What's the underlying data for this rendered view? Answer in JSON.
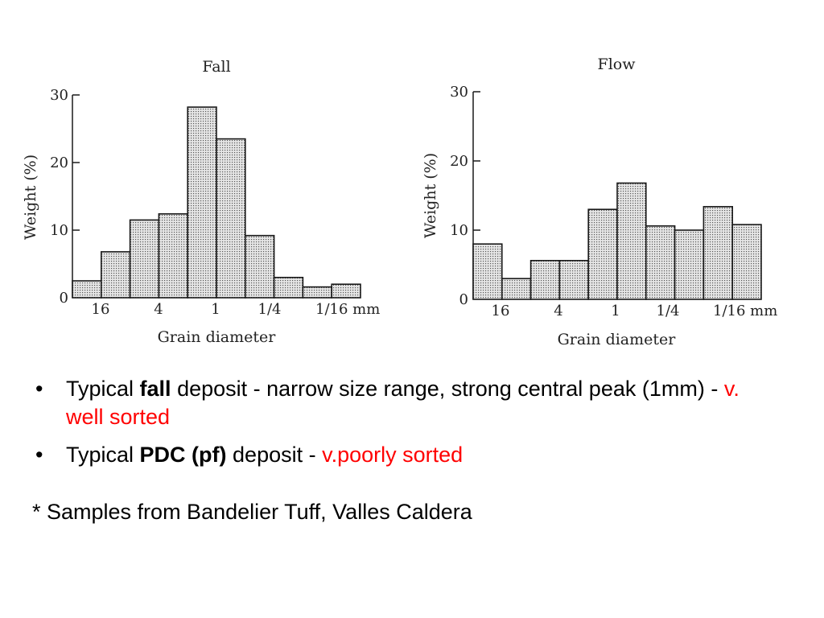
{
  "chart_data": [
    {
      "type": "bar",
      "title": "Fall",
      "xlabel": "Grain diameter",
      "ylabel": "Weight (%)",
      "ylim": [
        0,
        30
      ],
      "yticks": [
        "0",
        "10",
        "20",
        "30"
      ],
      "xtick_labels": [
        "16",
        "4",
        "1",
        "1/4",
        "1/16 mm"
      ],
      "grid": false,
      "values": [
        2.5,
        6.8,
        11.5,
        12.4,
        28.2,
        23.5,
        9.2,
        3.0,
        1.6,
        2.0
      ]
    },
    {
      "type": "bar",
      "title": "Flow",
      "xlabel": "Grain diameter",
      "ylabel": "Weight (%)",
      "ylim": [
        0,
        30
      ],
      "yticks": [
        "0",
        "10",
        "20",
        "30"
      ],
      "xtick_labels": [
        "16",
        "4",
        "1",
        "1/4",
        "1/16 mm"
      ],
      "grid": false,
      "values": [
        8.0,
        3.0,
        5.6,
        5.6,
        13.0,
        16.8,
        10.6,
        10.0,
        13.4,
        10.8
      ]
    }
  ],
  "notes": {
    "bullet_marker": "•",
    "items": [
      {
        "prefix": "Typical ",
        "emphasis": "fall",
        "middle": " deposit - narrow size range, strong central peak (1mm) - ",
        "highlight": "v. well sorted"
      },
      {
        "prefix": "Typical ",
        "emphasis": "PDC (pf)",
        "middle": " deposit - ",
        "highlight": "v.poorly sorted"
      }
    ],
    "footnote": "* Samples from Bandelier Tuff, Valles Caldera"
  },
  "colors": {
    "bar_fill": "#d2d2d2",
    "bar_stroke": "#1a1a1a",
    "axis": "#1a1a1a",
    "highlight_text": "#ff0000"
  }
}
